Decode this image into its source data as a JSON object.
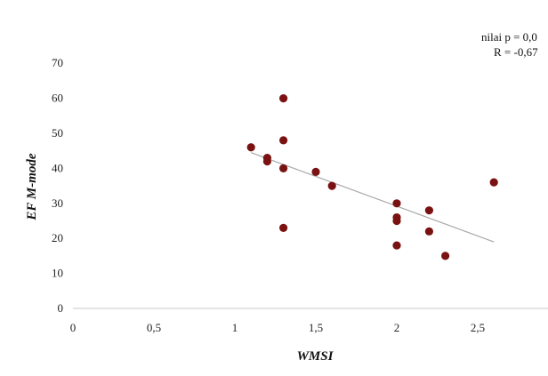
{
  "chart_data": {
    "type": "scatter",
    "xlabel": "WMSI",
    "ylabel": "EF M-mode",
    "xlim": [
      0,
      3
    ],
    "ylim": [
      0,
      70
    ],
    "x_ticks": [
      0,
      0.5,
      1,
      1.5,
      2,
      2.5
    ],
    "x_tick_labels": [
      "0",
      "0,5",
      "1",
      "1,5",
      "2",
      "2,5"
    ],
    "y_ticks": [
      0,
      10,
      20,
      30,
      40,
      50,
      60,
      70
    ],
    "y_tick_labels": [
      "0",
      "10",
      "20",
      "30",
      "40",
      "50",
      "60",
      "70"
    ],
    "grid": false,
    "legend": "none",
    "annotations": [
      "nilai p = 0,0",
      "R = -0,67"
    ],
    "points": [
      {
        "x": 1.1,
        "y": 46
      },
      {
        "x": 1.2,
        "y": 43
      },
      {
        "x": 1.2,
        "y": 42
      },
      {
        "x": 1.3,
        "y": 60
      },
      {
        "x": 1.3,
        "y": 48
      },
      {
        "x": 1.3,
        "y": 40
      },
      {
        "x": 1.3,
        "y": 23
      },
      {
        "x": 1.5,
        "y": 39
      },
      {
        "x": 1.6,
        "y": 35
      },
      {
        "x": 2.0,
        "y": 30
      },
      {
        "x": 2.0,
        "y": 26
      },
      {
        "x": 2.0,
        "y": 25
      },
      {
        "x": 2.0,
        "y": 18
      },
      {
        "x": 2.2,
        "y": 28
      },
      {
        "x": 2.2,
        "y": 22
      },
      {
        "x": 2.3,
        "y": 15
      },
      {
        "x": 2.6,
        "y": 36
      }
    ],
    "trendline": {
      "x": [
        1.1,
        2.6
      ],
      "y": [
        44.5,
        19
      ]
    },
    "colors": {
      "point": "#7a1212",
      "trendline": "#a8a8a8",
      "axis": "#c8c8c8"
    }
  }
}
